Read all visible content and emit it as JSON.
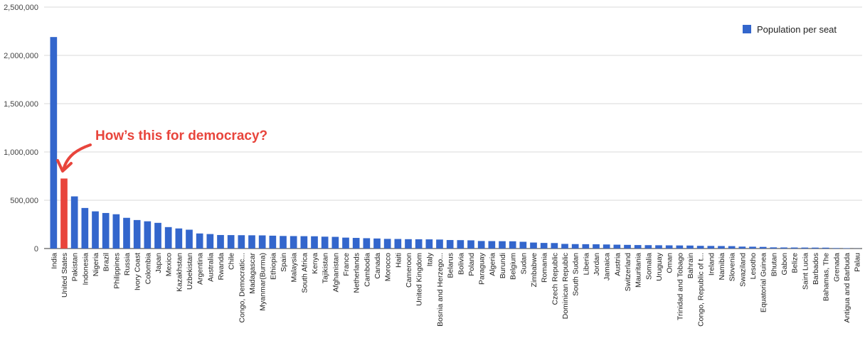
{
  "chart_data": {
    "type": "bar",
    "title": "",
    "xlabel": "",
    "ylabel": "",
    "ylim": [
      0,
      2500000
    ],
    "yticks": [
      0,
      500000,
      1000000,
      1500000,
      2000000,
      2500000
    ],
    "ytick_labels": [
      "0",
      "500,000",
      "1,000,000",
      "1,500,000",
      "2,000,000",
      "2,500,000"
    ],
    "grid": true,
    "legend_position": "top-right",
    "highlight_category": "United States",
    "colors": {
      "bar": "#3366cc",
      "highlight": "#e8453c",
      "grid": "#d9d9d9",
      "annotation": "#e8453c"
    },
    "annotation": "How’s this for democracy?",
    "categories": [
      "India",
      "United States",
      "Pakistan",
      "Indonesia",
      "Nigeria",
      "Brazil",
      "Philippines",
      "Russia",
      "Ivory Coast",
      "Colombia",
      "Japan",
      "Mexico",
      "Kazakhstan",
      "Uzbekistan",
      "Argentina",
      "Australia",
      "Rwanda",
      "Chile",
      "Congo, Democratic...",
      "Madagascar",
      "Myanmar(Burma)",
      "Ethiopia",
      "Spain",
      "Malaysia",
      "South Africa",
      "Kenya",
      "Tajikistan",
      "Afghanistan",
      "France",
      "Netherlands",
      "Cambodia",
      "Canada",
      "Morocco",
      "Haiti",
      "Cameroon",
      "United Kingdom",
      "Italy",
      "Bosnia and Herzego...",
      "Belarus",
      "Bolivia",
      "Poland",
      "Paraguay",
      "Algeria",
      "Burundi",
      "Belgium",
      "Sudan",
      "Zimbabwe",
      "Romania",
      "Czech Republic",
      "Dominican Republic",
      "South Sudan",
      "Liberia",
      "Jordan",
      "Jamaica",
      "Austria",
      "Switzerland",
      "Mauritania",
      "Somalia",
      "Uruguay",
      "Oman",
      "Trinidad and Tobago",
      "Bahrain",
      "Congo, Republic of t...",
      "Ireland",
      "Namibia",
      "Slovenia",
      "Swaziland",
      "Lesotho",
      "Equatorial Guinea",
      "Bhutan",
      "Gabon",
      "Belize",
      "Saint Lucia",
      "Barbados",
      "Bahamas, The",
      "Grenada",
      "Antigua and Barbuda",
      "Palau"
    ],
    "series": [
      {
        "name": "Population per seat",
        "values": [
          2190000,
          725000,
          540000,
          420000,
          385000,
          368000,
          355000,
          318000,
          295000,
          282000,
          266000,
          222000,
          208000,
          195000,
          156000,
          150000,
          140000,
          139000,
          138000,
          137000,
          136000,
          133000,
          130000,
          129000,
          128000,
          127000,
          123000,
          121000,
          113000,
          110000,
          107000,
          104000,
          100000,
          99000,
          97000,
          96000,
          95000,
          93000,
          88000,
          87000,
          85000,
          78000,
          77000,
          76000,
          75000,
          70000,
          62000,
          58000,
          57000,
          48000,
          46000,
          45000,
          44000,
          42000,
          40000,
          38000,
          36000,
          35000,
          34000,
          33000,
          32000,
          31000,
          28000,
          27000,
          26000,
          25000,
          20000,
          19000,
          17000,
          12000,
          11000,
          10500,
          10000,
          9500,
          9000,
          5000,
          4000,
          1000
        ]
      }
    ]
  }
}
